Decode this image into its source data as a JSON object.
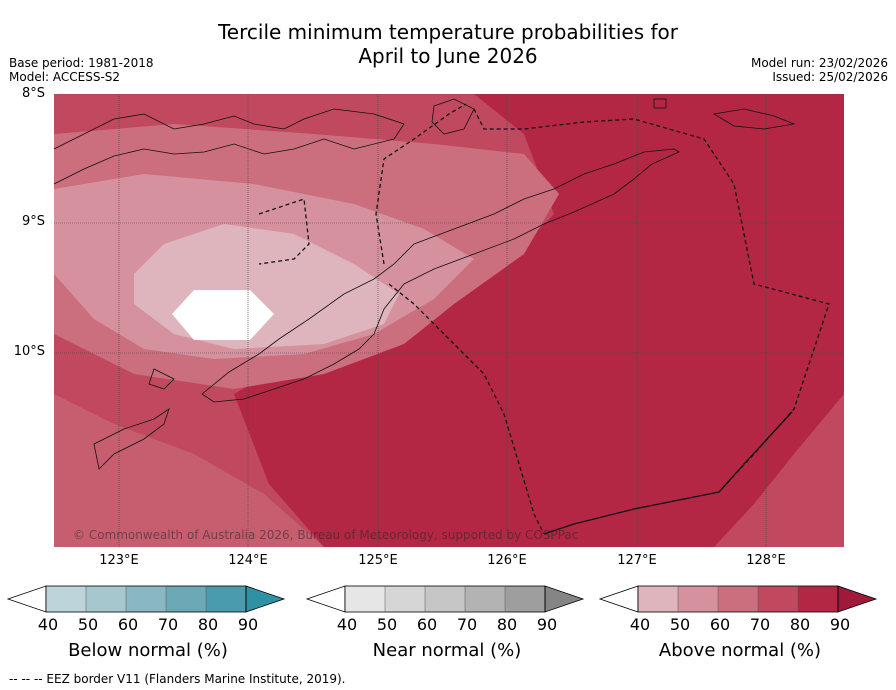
{
  "title": {
    "line1": "Tercile minimum temperature probabilities for",
    "line2": "April to June 2026"
  },
  "meta": {
    "base_period": "Base period: 1981-2018",
    "model": "Model: ACCESS-S2",
    "model_run": "Model run: 23/02/2026",
    "issued": "Issued: 25/02/2026"
  },
  "map": {
    "lat_labels": [
      "8°S",
      "9°S",
      "10°S"
    ],
    "lon_labels": [
      "123°E",
      "124°E",
      "125°E",
      "126°E",
      "127°E",
      "128°E"
    ],
    "copyright": "© Commonwealth of Australia 2026, Bureau of Meteorology, supported by COSPPac",
    "colors": {
      "above_40": "#dfb5bd",
      "above_50": "#d5929e",
      "above_60": "#cb6f7e",
      "above_70": "#c0495f",
      "above_80": "#b32745",
      "above_90": "#a0183a"
    }
  },
  "colorbars": [
    {
      "name": "below",
      "label": "Below normal (%)",
      "ticks": [
        "40",
        "50",
        "60",
        "70",
        "80",
        "90"
      ],
      "colors": [
        "#ffffff",
        "#bdd4da",
        "#a6c7cd",
        "#8ab8c2",
        "#6ba9b6",
        "#4a9bab",
        "#2f91a4"
      ]
    },
    {
      "name": "near",
      "label": "Near normal (%)",
      "ticks": [
        "40",
        "50",
        "60",
        "70",
        "80",
        "90"
      ],
      "colors": [
        "#ffffff",
        "#e6e6e6",
        "#d6d6d6",
        "#c6c6c6",
        "#b3b3b3",
        "#9e9e9e",
        "#858585"
      ]
    },
    {
      "name": "above",
      "label": "Above normal (%)",
      "ticks": [
        "40",
        "50",
        "60",
        "70",
        "80",
        "90"
      ],
      "colors": [
        "#ffffff",
        "#dfb5bd",
        "#d5929e",
        "#cb6f7e",
        "#c0495f",
        "#b32745",
        "#a0183a"
      ]
    }
  ],
  "footnote": "--  --  -- EEZ border V11 (Flanders Marine Institute, 2019)."
}
